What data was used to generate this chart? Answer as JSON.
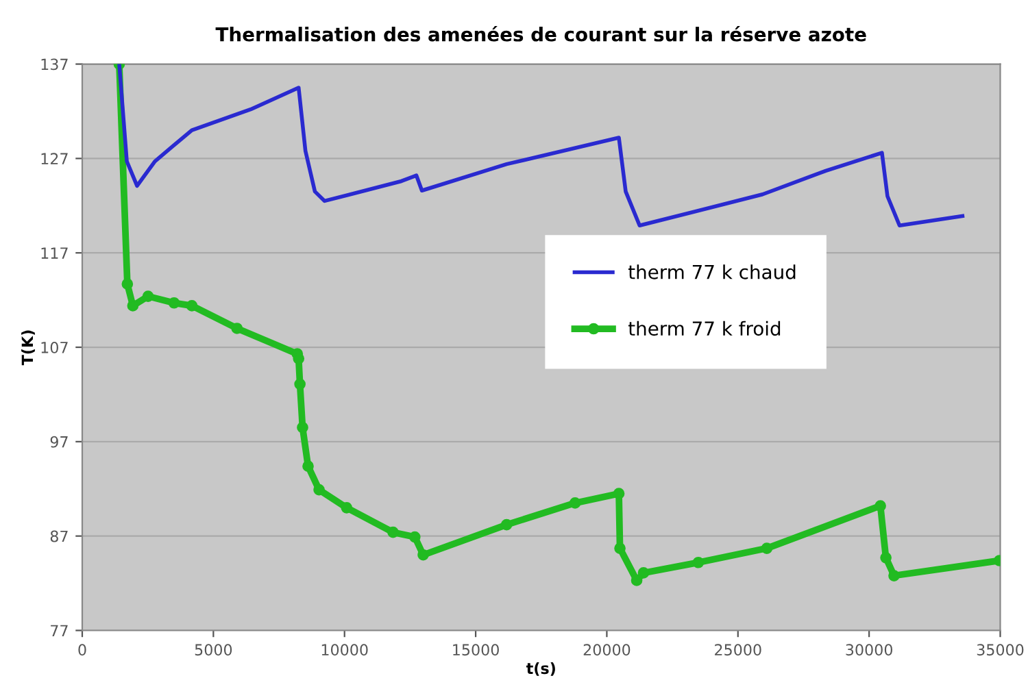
{
  "chart_data": {
    "type": "line",
    "title": "Thermalisation des amenées de courant sur la réserve azote",
    "xlabel": "t(s)",
    "ylabel": "T(K)",
    "xlim": [
      0,
      35000
    ],
    "xticks": [
      0,
      5000,
      10000,
      15000,
      20000,
      25000,
      30000,
      35000
    ],
    "ylim": [
      77,
      137
    ],
    "yticks": [
      77,
      87,
      97,
      107,
      117,
      127,
      137
    ],
    "grid": "y",
    "legend": "right",
    "series": [
      {
        "name": "therm 77 k chaud",
        "color": "#2a2ad0",
        "marker": "none",
        "x": [
          1410,
          1700,
          2090,
          2770,
          4180,
          6420,
          8250,
          8510,
          8870,
          9240,
          12170,
          12740,
          12950,
          16180,
          20460,
          20720,
          21250,
          25940,
          28350,
          30490,
          30700,
          31160,
          33560
        ],
        "values": [
          137,
          126.7,
          124.1,
          126.7,
          130.0,
          132.2,
          134.5,
          127.8,
          123.5,
          122.5,
          124.6,
          125.2,
          123.6,
          126.4,
          129.2,
          123.5,
          119.9,
          123.2,
          125.7,
          127.6,
          123.0,
          119.9,
          120.9
        ]
      },
      {
        "name": "therm 77 k froid",
        "color": "#22bb22",
        "marker": "circle",
        "x": [
          1410,
          1720,
          1930,
          2510,
          3500,
          4180,
          5900,
          8200,
          8250,
          8300,
          8400,
          8610,
          9030,
          10080,
          11850,
          12680,
          13000,
          16180,
          18790,
          20460,
          20500,
          21140,
          21400,
          23490,
          26100,
          30430,
          30640,
          30950,
          34970
        ],
        "values": [
          137,
          113.7,
          111.4,
          112.4,
          111.7,
          111.4,
          109.0,
          106.3,
          105.8,
          103.1,
          98.5,
          94.4,
          91.9,
          90.0,
          87.4,
          86.9,
          85.0,
          88.2,
          90.5,
          91.5,
          85.7,
          82.3,
          83.1,
          84.2,
          85.7,
          90.2,
          84.7,
          82.8,
          84.4
        ]
      }
    ]
  }
}
